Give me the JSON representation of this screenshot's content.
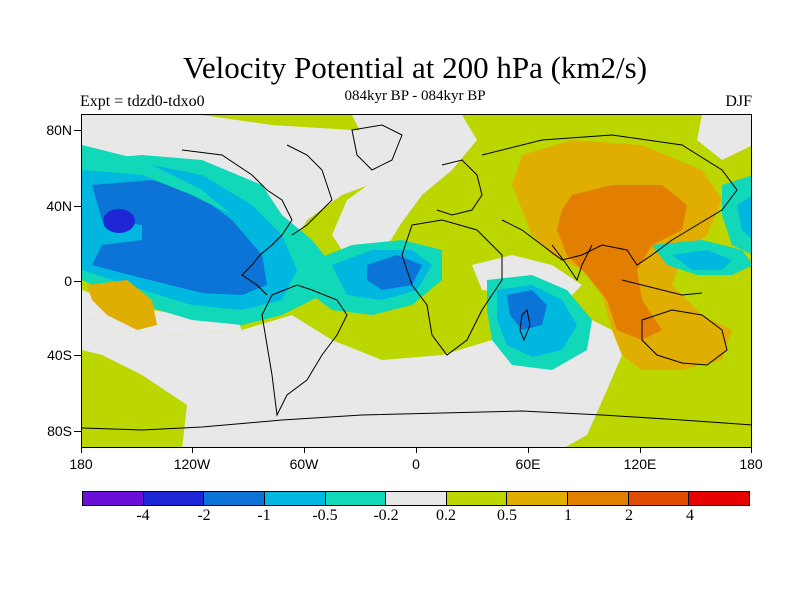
{
  "header": {
    "title": "Velocity Potential at 200 hPa (km2/s)",
    "subtitle": "084kyr BP - 084kyr BP",
    "expt": "Expt = tdzd0-tdxo0",
    "season": "DJF"
  },
  "axes": {
    "lat_labels": [
      "80N",
      "40N",
      "0",
      "40S",
      "80S"
    ],
    "lon_labels": [
      "180",
      "120W",
      "60W",
      "0",
      "60E",
      "120E",
      "180"
    ]
  },
  "colorbar": {
    "colors": [
      "#6a0fd8",
      "#1f26d6",
      "#0b74d6",
      "#00b7df",
      "#10d8b9",
      "#e8e8e8",
      "#bcd600",
      "#dfae00",
      "#e37f00",
      "#e04c00",
      "#e60000"
    ],
    "labels": [
      "-4",
      "-2",
      "-1",
      "-0.5",
      "-0.2",
      "0.2",
      "0.5",
      "1",
      "2",
      "4"
    ]
  },
  "palette": {
    "neutral": "#e8e8e8",
    "lime": "#bcd600",
    "turquoise": "#10d8b9",
    "cyan": "#00b7df",
    "blue": "#0b74d6",
    "darkblue": "#1f26d6",
    "gold": "#dfae00",
    "orange": "#e37f00"
  }
}
